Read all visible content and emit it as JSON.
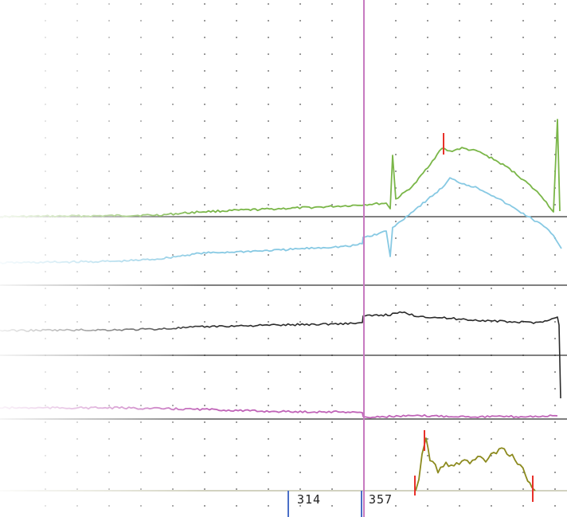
{
  "chart_data": {
    "type": "line",
    "title": "",
    "xlabel": "",
    "ylabel": "",
    "grid": true,
    "xlim": [
      0,
      720
    ],
    "colors": {
      "series_1": "#7ab648",
      "series_2": "#87c9e3",
      "series_3": "#2a2a2a",
      "series_4": "#c064b8",
      "series_5": "#8c8a1e",
      "cursor": "#c77ac0",
      "marker": "#e8302a",
      "tick_marker": "#4a6fc7"
    },
    "markers": {
      "cursor_x": 457,
      "value_labels": [
        "314",
        "357"
      ]
    },
    "series": [
      {
        "baseline": 272,
        "points": [
          [
            0,
            272
          ],
          [
            120,
            271
          ],
          [
            200,
            270
          ],
          [
            250,
            266
          ],
          [
            300,
            264
          ],
          [
            350,
            262
          ],
          [
            400,
            260
          ],
          [
            440,
            258
          ],
          [
            455,
            257
          ],
          [
            470,
            256
          ],
          [
            485,
            255
          ],
          [
            490,
            262
          ],
          [
            493,
            195
          ],
          [
            497,
            250
          ],
          [
            505,
            244
          ],
          [
            520,
            232
          ],
          [
            540,
            206
          ],
          [
            555,
            186
          ],
          [
            565,
            190
          ],
          [
            580,
            186
          ],
          [
            600,
            190
          ],
          [
            620,
            200
          ],
          [
            640,
            212
          ],
          [
            660,
            228
          ],
          [
            680,
            246
          ],
          [
            695,
            266
          ],
          [
            700,
            150
          ],
          [
            703,
            265
          ]
        ]
      },
      {
        "baseline": 358,
        "points": [
          [
            0,
            330
          ],
          [
            150,
            328
          ],
          [
            200,
            325
          ],
          [
            250,
            318
          ],
          [
            300,
            316
          ],
          [
            350,
            314
          ],
          [
            400,
            311
          ],
          [
            440,
            309
          ],
          [
            455,
            306
          ],
          [
            456,
            298
          ],
          [
            470,
            295
          ],
          [
            485,
            290
          ],
          [
            490,
            322
          ],
          [
            493,
            286
          ],
          [
            510,
            272
          ],
          [
            525,
            260
          ],
          [
            540,
            248
          ],
          [
            555,
            236
          ],
          [
            565,
            224
          ],
          [
            580,
            230
          ],
          [
            600,
            236
          ],
          [
            620,
            246
          ],
          [
            640,
            258
          ],
          [
            660,
            270
          ],
          [
            680,
            282
          ],
          [
            695,
            295
          ],
          [
            705,
            312
          ]
        ]
      },
      {
        "baseline": 446,
        "points": [
          [
            0,
            415
          ],
          [
            150,
            414
          ],
          [
            200,
            413
          ],
          [
            260,
            410
          ],
          [
            300,
            409
          ],
          [
            350,
            408
          ],
          [
            400,
            407
          ],
          [
            440,
            406
          ],
          [
            455,
            405
          ],
          [
            456,
            397
          ],
          [
            470,
            396
          ],
          [
            490,
            395
          ],
          [
            505,
            392
          ],
          [
            520,
            396
          ],
          [
            540,
            398
          ],
          [
            570,
            400
          ],
          [
            600,
            402
          ],
          [
            640,
            404
          ],
          [
            670,
            405
          ],
          [
            690,
            402
          ],
          [
            700,
            398
          ],
          [
            702,
            408
          ],
          [
            704,
            500
          ]
        ]
      },
      {
        "baseline": 526,
        "points": [
          [
            0,
            512
          ],
          [
            150,
            512
          ],
          [
            200,
            513
          ],
          [
            260,
            514
          ],
          [
            320,
            516
          ],
          [
            380,
            517
          ],
          [
            440,
            517
          ],
          [
            455,
            518
          ],
          [
            456,
            524
          ],
          [
            480,
            523
          ],
          [
            530,
            522
          ],
          [
            600,
            523
          ],
          [
            660,
            523
          ],
          [
            700,
            522
          ]
        ]
      },
      {
        "baseline": 616,
        "points": [
          [
            522,
            616
          ],
          [
            526,
            602
          ],
          [
            530,
            570
          ],
          [
            535,
            550
          ],
          [
            540,
            575
          ],
          [
            550,
            590
          ],
          [
            560,
            580
          ],
          [
            570,
            588
          ],
          [
            580,
            576
          ],
          [
            590,
            582
          ],
          [
            600,
            574
          ],
          [
            610,
            578
          ],
          [
            620,
            570
          ],
          [
            630,
            565
          ],
          [
            640,
            570
          ],
          [
            650,
            580
          ],
          [
            660,
            596
          ],
          [
            668,
            612
          ],
          [
            672,
            616
          ]
        ]
      }
    ]
  }
}
